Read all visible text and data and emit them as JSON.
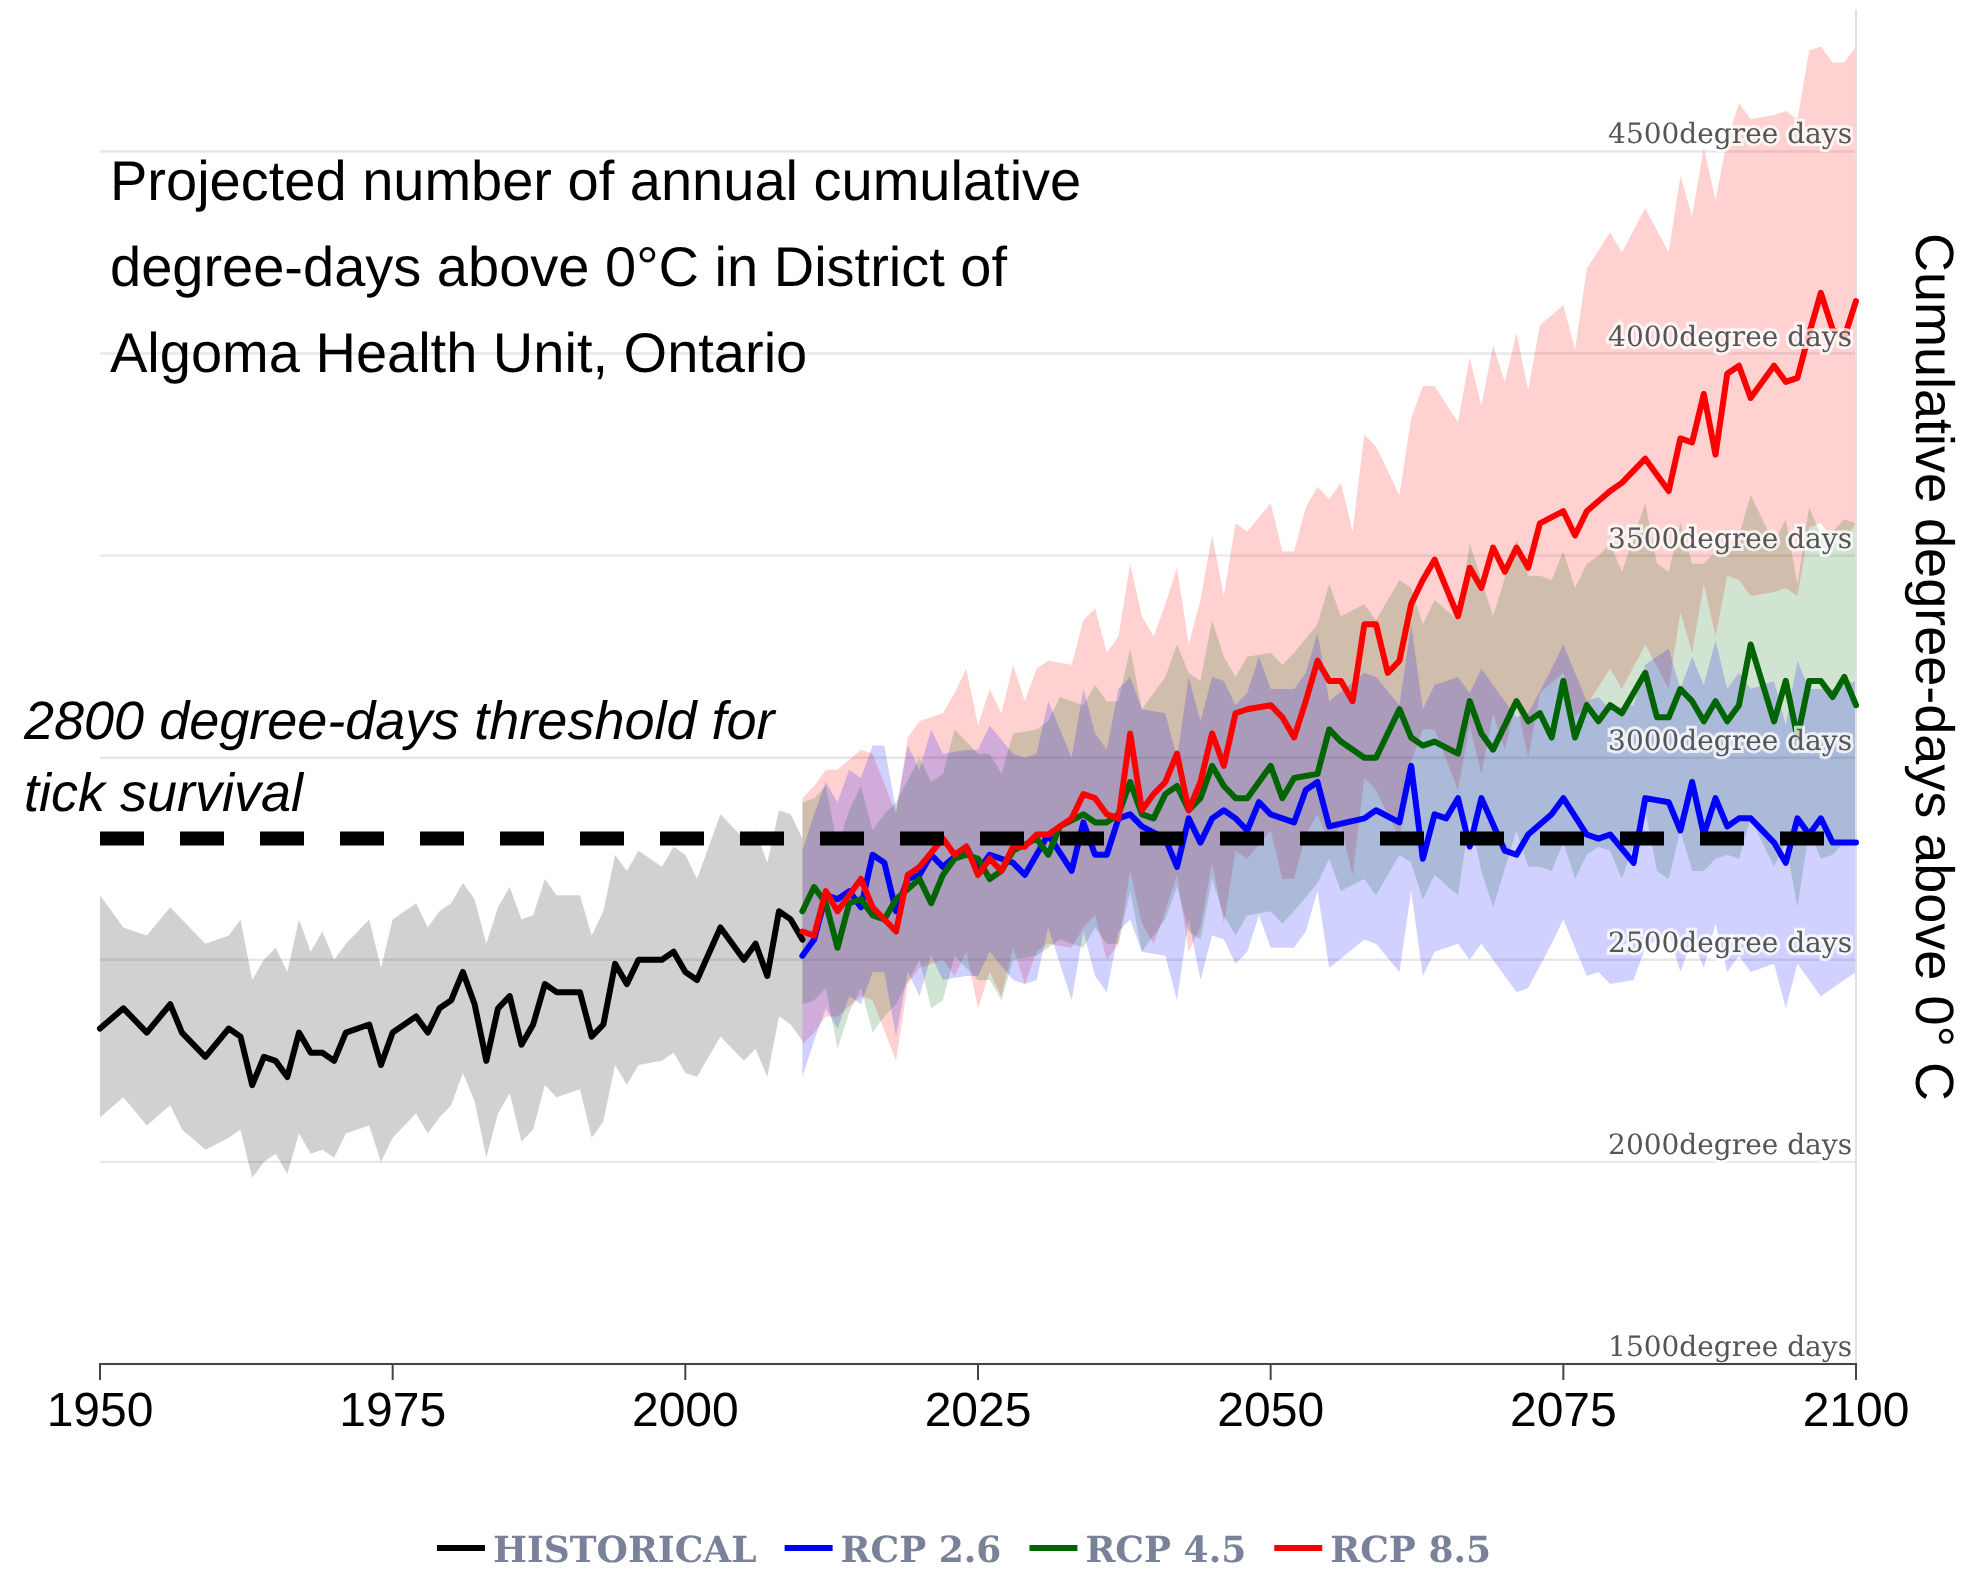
{
  "chart_data": {
    "type": "line",
    "title": "Projected number of annual cumulative degree-days above 0°C in District of Algoma Health Unit, Ontario",
    "ylabel": "Cumulative degree-days above 0° C",
    "xlim": [
      1950,
      2100
    ],
    "xticks": [
      1950,
      1975,
      2000,
      2025,
      2050,
      2075,
      2100
    ],
    "ylim": [
      1500,
      4850
    ],
    "yticks": [
      {
        "value": 1500,
        "label": "1500degree days"
      },
      {
        "value": 2000,
        "label": "2000degree days"
      },
      {
        "value": 2500,
        "label": "2500degree days"
      },
      {
        "value": 3000,
        "label": "3000degree days"
      },
      {
        "value": 3500,
        "label": "3500degree days"
      },
      {
        "value": 4000,
        "label": "4000degree days"
      },
      {
        "value": 4500,
        "label": "4500degree days"
      }
    ],
    "grid": "y",
    "legend": "bottom",
    "line_style": "solid",
    "marker": "none",
    "ref_lines": [
      {
        "axis": "y",
        "value": 2800,
        "label": "2800 degree-days threshold for tick survival",
        "color": "#000000",
        "line_style": "dashed"
      }
    ],
    "series": [
      {
        "name": "HISTORICAL",
        "color": "#000000",
        "x": [
          1950,
          1952,
          1954,
          1956,
          1957,
          1959,
          1961,
          1962,
          1963,
          1964,
          1965,
          1966,
          1967,
          1968,
          1969,
          1970,
          1971,
          1973,
          1974,
          1975,
          1977,
          1978,
          1979,
          1980,
          1981,
          1982,
          1983,
          1984,
          1985,
          1986,
          1987,
          1988,
          1989,
          1991,
          1992,
          1993,
          1994,
          1995,
          1996,
          1998,
          1999,
          2000,
          2001,
          2003,
          2005,
          2006,
          2007,
          2008,
          2009,
          2010
        ],
        "values": [
          2330,
          2380,
          2320,
          2390,
          2320,
          2260,
          2330,
          2310,
          2190,
          2260,
          2250,
          2210,
          2320,
          2270,
          2270,
          2250,
          2320,
          2340,
          2240,
          2320,
          2360,
          2320,
          2380,
          2400,
          2470,
          2390,
          2250,
          2380,
          2410,
          2290,
          2340,
          2440,
          2420,
          2420,
          2310,
          2340,
          2490,
          2440,
          2500,
          2500,
          2520,
          2470,
          2450,
          2580,
          2500,
          2540,
          2460,
          2620,
          2600,
          2550
        ],
        "upper": [
          2660,
          2580,
          2560,
          2630,
          2600,
          2540,
          2560,
          2600,
          2450,
          2500,
          2530,
          2470,
          2600,
          2520,
          2570,
          2500,
          2540,
          2600,
          2480,
          2600,
          2640,
          2580,
          2620,
          2640,
          2690,
          2650,
          2540,
          2630,
          2680,
          2600,
          2610,
          2700,
          2660,
          2660,
          2560,
          2620,
          2760,
          2720,
          2770,
          2730,
          2780,
          2760,
          2700,
          2860,
          2800,
          2820,
          2740,
          2870,
          2860,
          2800
        ],
        "lower": [
          2110,
          2160,
          2090,
          2140,
          2080,
          2030,
          2060,
          2080,
          1960,
          2000,
          2020,
          1970,
          2070,
          2020,
          2030,
          2010,
          2070,
          2090,
          2000,
          2060,
          2120,
          2070,
          2110,
          2140,
          2220,
          2150,
          2010,
          2120,
          2170,
          2050,
          2080,
          2190,
          2160,
          2180,
          2060,
          2100,
          2240,
          2190,
          2240,
          2250,
          2270,
          2220,
          2210,
          2310,
          2250,
          2280,
          2210,
          2360,
          2340,
          2300
        ]
      },
      {
        "name": "RCP 2.6",
        "color": "#0000ff",
        "x": [
          2010,
          2011,
          2012,
          2013,
          2014,
          2015,
          2016,
          2017,
          2018,
          2019,
          2020,
          2021,
          2022,
          2024,
          2025,
          2026,
          2028,
          2029,
          2030,
          2031,
          2033,
          2034,
          2035,
          2036,
          2037,
          2038,
          2039,
          2041,
          2042,
          2043,
          2044,
          2045,
          2046,
          2047,
          2048,
          2049,
          2050,
          2052,
          2053,
          2054,
          2055,
          2058,
          2059,
          2061,
          2062,
          2063,
          2064,
          2065,
          2066,
          2067,
          2068,
          2070,
          2071,
          2072,
          2074,
          2075,
          2077,
          2078,
          2079,
          2081,
          2082,
          2084,
          2085,
          2086,
          2087,
          2088,
          2089,
          2090,
          2091,
          2093,
          2094,
          2095,
          2096,
          2097,
          2098,
          2100
        ],
        "values": [
          2510,
          2550,
          2660,
          2650,
          2670,
          2630,
          2760,
          2740,
          2620,
          2700,
          2710,
          2760,
          2730,
          2780,
          2720,
          2760,
          2740,
          2710,
          2760,
          2810,
          2720,
          2840,
          2760,
          2760,
          2850,
          2860,
          2830,
          2800,
          2730,
          2850,
          2790,
          2850,
          2870,
          2850,
          2820,
          2890,
          2860,
          2840,
          2920,
          2940,
          2830,
          2850,
          2870,
          2840,
          2980,
          2750,
          2860,
          2850,
          2900,
          2780,
          2900,
          2770,
          2760,
          2810,
          2860,
          2900,
          2810,
          2800,
          2810,
          2740,
          2900,
          2890,
          2820,
          2940,
          2810,
          2900,
          2830,
          2850,
          2850,
          2790,
          2740,
          2850,
          2810,
          2850,
          2790,
          2790
        ],
        "upper": [
          2770,
          2860,
          2940,
          2890,
          2970,
          2950,
          3030,
          3030,
          2870,
          3030,
          2970,
          3070,
          3010,
          3020,
          3020,
          3080,
          3010,
          3000,
          3010,
          3140,
          3000,
          3170,
          3060,
          3020,
          3170,
          3200,
          3120,
          3110,
          3000,
          3200,
          3090,
          3200,
          3190,
          3130,
          3160,
          3250,
          3170,
          3170,
          3210,
          3310,
          3140,
          3210,
          3200,
          3130,
          3330,
          3120,
          3180,
          3190,
          3200,
          3160,
          3220,
          3140,
          3100,
          3110,
          3220,
          3280,
          3140,
          3150,
          3120,
          3130,
          3230,
          3270,
          3170,
          3250,
          3180,
          3290,
          3170,
          3210,
          3170,
          3190,
          3080,
          3240,
          3170,
          3170,
          3170,
          3190
        ],
        "lower": [
          2210,
          2300,
          2380,
          2330,
          2410,
          2390,
          2470,
          2470,
          2310,
          2470,
          2410,
          2510,
          2450,
          2460,
          2460,
          2520,
          2450,
          2440,
          2450,
          2580,
          2400,
          2570,
          2460,
          2420,
          2570,
          2600,
          2520,
          2510,
          2400,
          2600,
          2450,
          2560,
          2550,
          2490,
          2520,
          2610,
          2530,
          2530,
          2570,
          2670,
          2480,
          2550,
          2540,
          2470,
          2670,
          2460,
          2520,
          2530,
          2540,
          2500,
          2540,
          2460,
          2420,
          2430,
          2540,
          2600,
          2460,
          2470,
          2440,
          2450,
          2530,
          2570,
          2470,
          2550,
          2480,
          2590,
          2470,
          2510,
          2470,
          2490,
          2380,
          2490,
          2450,
          2410,
          2430,
          2470
        ]
      },
      {
        "name": "RCP 4.5",
        "color": "#006400",
        "x": [
          2010,
          2011,
          2012,
          2013,
          2014,
          2015,
          2016,
          2017,
          2018,
          2020,
          2021,
          2022,
          2023,
          2024,
          2025,
          2026,
          2027,
          2028,
          2030,
          2031,
          2032,
          2034,
          2035,
          2036,
          2037,
          2038,
          2039,
          2040,
          2041,
          2042,
          2043,
          2044,
          2045,
          2046,
          2047,
          2048,
          2050,
          2051,
          2052,
          2054,
          2055,
          2056,
          2058,
          2059,
          2061,
          2062,
          2063,
          2064,
          2066,
          2067,
          2068,
          2069,
          2071,
          2072,
          2073,
          2074,
          2075,
          2076,
          2077,
          2078,
          2079,
          2080,
          2082,
          2083,
          2084,
          2085,
          2086,
          2087,
          2088,
          2089,
          2090,
          2091,
          2093,
          2094,
          2095,
          2096,
          2097,
          2098,
          2099,
          2100
        ],
        "values": [
          2620,
          2680,
          2640,
          2530,
          2640,
          2650,
          2610,
          2600,
          2650,
          2700,
          2640,
          2710,
          2750,
          2760,
          2750,
          2700,
          2720,
          2770,
          2800,
          2760,
          2830,
          2860,
          2840,
          2840,
          2860,
          2940,
          2860,
          2850,
          2910,
          2930,
          2870,
          2900,
          2980,
          2930,
          2900,
          2900,
          2980,
          2900,
          2950,
          2960,
          3070,
          3040,
          3000,
          3000,
          3120,
          3050,
          3030,
          3040,
          3010,
          3140,
          3060,
          3020,
          3140,
          3090,
          3110,
          3050,
          3190,
          3050,
          3130,
          3090,
          3130,
          3110,
          3210,
          3100,
          3100,
          3170,
          3140,
          3090,
          3140,
          3090,
          3130,
          3280,
          3090,
          3190,
          3050,
          3190,
          3190,
          3150,
          3200,
          3130
        ],
        "upper": [
          2890,
          2900,
          2930,
          2780,
          2870,
          2930,
          2820,
          2860,
          2890,
          3000,
          2940,
          2960,
          3070,
          3040,
          3010,
          3010,
          2960,
          3060,
          3070,
          3090,
          3150,
          3130,
          3180,
          3140,
          3140,
          3270,
          3120,
          3160,
          3200,
          3280,
          3210,
          3190,
          3340,
          3250,
          3200,
          3250,
          3260,
          3230,
          3260,
          3330,
          3430,
          3350,
          3380,
          3340,
          3440,
          3420,
          3330,
          3390,
          3340,
          3530,
          3440,
          3350,
          3540,
          3450,
          3450,
          3440,
          3510,
          3420,
          3480,
          3500,
          3530,
          3460,
          3630,
          3480,
          3460,
          3580,
          3480,
          3480,
          3510,
          3520,
          3550,
          3650,
          3530,
          3590,
          3430,
          3620,
          3550,
          3560,
          3590,
          3580
        ],
        "lower": [
          2390,
          2400,
          2430,
          2280,
          2370,
          2430,
          2320,
          2360,
          2390,
          2500,
          2380,
          2400,
          2510,
          2480,
          2450,
          2450,
          2400,
          2500,
          2510,
          2530,
          2550,
          2530,
          2580,
          2540,
          2540,
          2670,
          2520,
          2560,
          2600,
          2680,
          2570,
          2550,
          2700,
          2610,
          2560,
          2610,
          2620,
          2590,
          2620,
          2690,
          2750,
          2670,
          2700,
          2660,
          2760,
          2740,
          2650,
          2710,
          2660,
          2850,
          2720,
          2630,
          2820,
          2730,
          2730,
          2720,
          2790,
          2700,
          2760,
          2780,
          2770,
          2700,
          2870,
          2720,
          2700,
          2820,
          2720,
          2720,
          2750,
          2760,
          2750,
          2850,
          2730,
          2790,
          2630,
          2820,
          2750,
          2760,
          2790,
          2780
        ]
      },
      {
        "name": "RCP 8.5",
        "color": "#ff0000",
        "x": [
          2010,
          2011,
          2012,
          2013,
          2015,
          2016,
          2018,
          2019,
          2020,
          2022,
          2023,
          2024,
          2025,
          2026,
          2027,
          2028,
          2029,
          2030,
          2031,
          2033,
          2034,
          2035,
          2036,
          2037,
          2038,
          2039,
          2040,
          2041,
          2042,
          2043,
          2044,
          2045,
          2046,
          2047,
          2048,
          2050,
          2051,
          2052,
          2053,
          2054,
          2055,
          2056,
          2057,
          2058,
          2059,
          2060,
          2061,
          2062,
          2063,
          2064,
          2066,
          2067,
          2068,
          2069,
          2070,
          2071,
          2072,
          2073,
          2075,
          2076,
          2077,
          2079,
          2080,
          2082,
          2084,
          2085,
          2086,
          2087,
          2088,
          2089,
          2090,
          2091,
          2093,
          2094,
          2095,
          2096,
          2097,
          2098,
          2099,
          2100
        ],
        "values": [
          2570,
          2560,
          2670,
          2620,
          2700,
          2630,
          2570,
          2710,
          2730,
          2800,
          2760,
          2780,
          2710,
          2750,
          2720,
          2780,
          2780,
          2810,
          2810,
          2850,
          2910,
          2900,
          2860,
          2850,
          3060,
          2870,
          2910,
          2940,
          3010,
          2870,
          2940,
          3060,
          2980,
          3110,
          3120,
          3130,
          3100,
          3050,
          3140,
          3240,
          3190,
          3190,
          3140,
          3330,
          3330,
          3210,
          3240,
          3380,
          3440,
          3490,
          3350,
          3470,
          3420,
          3520,
          3460,
          3520,
          3470,
          3580,
          3610,
          3550,
          3610,
          3660,
          3680,
          3740,
          3660,
          3790,
          3780,
          3900,
          3750,
          3950,
          3970,
          3890,
          3970,
          3930,
          3940,
          4050,
          4150,
          4060,
          4040,
          4130
        ],
        "upper": [
          2900,
          2930,
          2970,
          2970,
          3020,
          3010,
          2860,
          3050,
          3090,
          3110,
          3160,
          3220,
          3080,
          3170,
          3110,
          3230,
          3140,
          3220,
          3240,
          3230,
          3340,
          3370,
          3260,
          3300,
          3480,
          3350,
          3300,
          3380,
          3470,
          3280,
          3390,
          3550,
          3400,
          3580,
          3560,
          3630,
          3510,
          3510,
          3620,
          3670,
          3640,
          3680,
          3560,
          3800,
          3770,
          3710,
          3650,
          3840,
          3920,
          3920,
          3830,
          3990,
          3870,
          4020,
          3930,
          4050,
          3910,
          4070,
          4120,
          4010,
          4210,
          4300,
          4250,
          4360,
          4250,
          4440,
          4340,
          4510,
          4380,
          4530,
          4620,
          4580,
          4590,
          4600,
          4580,
          4750,
          4760,
          4720,
          4720,
          4760
        ],
        "lower": [
          2290,
          2320,
          2360,
          2360,
          2410,
          2400,
          2250,
          2440,
          2480,
          2500,
          2460,
          2520,
          2380,
          2470,
          2410,
          2530,
          2440,
          2520,
          2540,
          2530,
          2580,
          2610,
          2500,
          2540,
          2720,
          2590,
          2540,
          2620,
          2710,
          2520,
          2580,
          2740,
          2590,
          2770,
          2750,
          2820,
          2700,
          2700,
          2810,
          2860,
          2790,
          2830,
          2710,
          2950,
          2920,
          2860,
          2800,
          2990,
          3070,
          3070,
          2920,
          3080,
          2960,
          3110,
          3020,
          3140,
          3000,
          3160,
          3210,
          3100,
          3130,
          3220,
          3170,
          3280,
          3170,
          3360,
          3260,
          3430,
          3300,
          3450,
          3440,
          3400,
          3410,
          3420,
          3400,
          3570,
          3580,
          3540,
          3540,
          3580
        ]
      }
    ]
  }
}
